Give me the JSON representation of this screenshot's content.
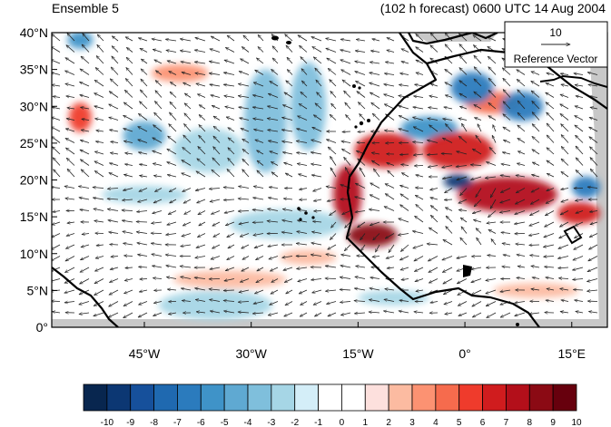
{
  "title_left": "Ensemble 5",
  "title_right": "(102 h forecast) 0600 UTC 14 Aug 2004",
  "reference_vector": {
    "magnitude": "10",
    "label": "Reference Vector"
  },
  "lat_labels": [
    "40°N",
    "35°N",
    "30°N",
    "25°N",
    "20°N",
    "15°N",
    "10°N",
    "5°N",
    "0°"
  ],
  "lon_labels": [
    "45°W",
    "30°W",
    "15°W",
    "0°",
    "15°E"
  ],
  "colorbar": {
    "labels": [
      "-10",
      "-9",
      "-8",
      "-7",
      "-6",
      "-5",
      "-4",
      "-3",
      "-2",
      "-1",
      "0",
      "1",
      "2",
      "3",
      "4",
      "5",
      "6",
      "7",
      "8",
      "9",
      "10"
    ],
    "colors": [
      "#08264f",
      "#0c3773",
      "#16509b",
      "#1f69b0",
      "#2b7bbd",
      "#3f93c8",
      "#5fa9d2",
      "#7fbfdc",
      "#a6d6e6",
      "#d4eef8",
      "#ffffff",
      "#ffffff",
      "#fde0dd",
      "#fcbba1",
      "#fc9272",
      "#f66b4d",
      "#ef3b2c",
      "#d01c1e",
      "#b30f1a",
      "#8b0a14",
      "#67000d"
    ]
  },
  "map_domain": {
    "lon_min": -58,
    "lon_max": 20,
    "lat_min": 0,
    "lat_max": 40
  },
  "anomaly_regions": [
    {
      "lon": -16.5,
      "lat": 18,
      "rx": 2,
      "ry": 4,
      "value": 8
    },
    {
      "lon": -13,
      "lat": 12.5,
      "rx": 3.5,
      "ry": 1.6,
      "value": 9
    },
    {
      "lon": -11,
      "lat": 24,
      "rx": 4.5,
      "ry": 2.4,
      "value": 7
    },
    {
      "lon": -1,
      "lat": 24,
      "rx": 5,
      "ry": 2.5,
      "value": 7
    },
    {
      "lon": 6,
      "lat": 18,
      "rx": 7,
      "ry": 2.4,
      "value": 8
    },
    {
      "lon": 16,
      "lat": 15.5,
      "rx": 3,
      "ry": 1.5,
      "value": 7
    },
    {
      "lon": -54,
      "lat": 28.5,
      "rx": 1.6,
      "ry": 2,
      "value": 6
    },
    {
      "lon": -40,
      "lat": 34.5,
      "rx": 4,
      "ry": 1.2,
      "value": 4
    },
    {
      "lon": -33,
      "lat": 6.5,
      "rx": 8,
      "ry": 1.2,
      "value": 3
    },
    {
      "lon": -22,
      "lat": 9.5,
      "rx": 4,
      "ry": 1,
      "value": 3
    },
    {
      "lon": 4,
      "lat": 30.5,
      "rx": 4,
      "ry": 1.5,
      "value": 5
    },
    {
      "lon": 10,
      "lat": 5,
      "rx": 6,
      "ry": 1,
      "value": 3
    },
    {
      "lon": -1,
      "lat": 19.8,
      "rx": 2,
      "ry": 1,
      "value": -9
    },
    {
      "lon": 1,
      "lat": 32.5,
      "rx": 3,
      "ry": 2.2,
      "value": -6
    },
    {
      "lon": 8,
      "lat": 30,
      "rx": 3,
      "ry": 2,
      "value": -6
    },
    {
      "lon": 17,
      "lat": 19,
      "rx": 2,
      "ry": 1.5,
      "value": -6
    },
    {
      "lon": -5,
      "lat": 27,
      "rx": 4,
      "ry": 1.6,
      "value": -5
    },
    {
      "lon": -45,
      "lat": 26,
      "rx": 3,
      "ry": 2,
      "value": -4
    },
    {
      "lon": -54,
      "lat": 39,
      "rx": 1.8,
      "ry": 1.2,
      "value": -5
    },
    {
      "lon": -28,
      "lat": 28,
      "rx": 3,
      "ry": 7,
      "value": -3
    },
    {
      "lon": -22,
      "lat": 30,
      "rx": 2.5,
      "ry": 6,
      "value": -3
    },
    {
      "lon": -36,
      "lat": 24,
      "rx": 5,
      "ry": 3,
      "value": -2
    },
    {
      "lon": -25,
      "lat": 14,
      "rx": 8,
      "ry": 2,
      "value": -2
    },
    {
      "lon": -35,
      "lat": 3,
      "rx": 8,
      "ry": 2,
      "value": -2
    },
    {
      "lon": -10,
      "lat": 4,
      "rx": 5,
      "ry": 1,
      "value": -2
    },
    {
      "lon": -45,
      "lat": 18,
      "rx": 6,
      "ry": 1.2,
      "value": -2
    }
  ]
}
